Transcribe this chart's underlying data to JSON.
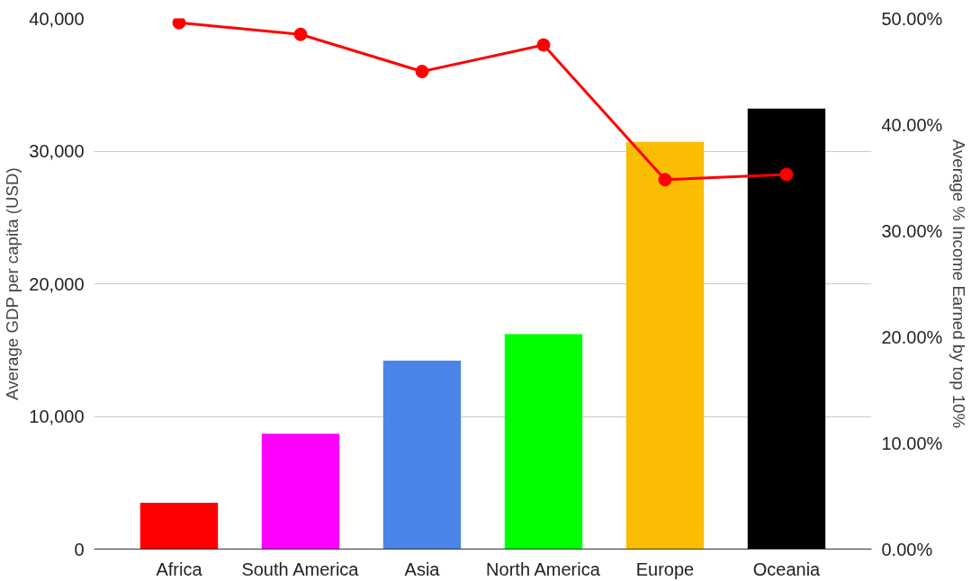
{
  "chart_data": {
    "type": "bar",
    "categories": [
      "Africa",
      "South America",
      "Asia",
      "North America",
      "Europe",
      "Oceania"
    ],
    "ylabel": "Average GDP per capita (USD)",
    "y2label": "Average % Income Earned by top 10%",
    "series": [
      {
        "colors": [
          "#ff0000",
          "#ff00ff",
          "#4a86e8",
          "#00ff00",
          "#fbbc04",
          "#000000"
        ],
        "values": [
          3500,
          8700,
          14200,
          16200,
          30700,
          33200
        ]
      },
      {
        "type": "line",
        "axis": "y2",
        "color": "#ff0000",
        "marker": "circle",
        "values": [
          49.6,
          48.5,
          45.0,
          47.5,
          34.8,
          35.3
        ]
      }
    ],
    "ylim": [
      0,
      40000
    ],
    "yticks": [
      {
        "value": 0,
        "label": "0"
      },
      {
        "value": 10000,
        "label": "10,000"
      },
      {
        "value": 20000,
        "label": "20,000"
      },
      {
        "value": 30000,
        "label": "30,000"
      },
      {
        "value": 40000,
        "label": "40,000"
      }
    ],
    "y2lim": [
      0,
      50
    ],
    "y2ticks": [
      {
        "value": 0,
        "label": "0.00%"
      },
      {
        "value": 10,
        "label": "10.00%"
      },
      {
        "value": 20,
        "label": "20.00%"
      },
      {
        "value": 30,
        "label": "30.00%"
      },
      {
        "value": 40,
        "label": "40.00%"
      },
      {
        "value": 50,
        "label": "50.00%"
      }
    ],
    "grid": "y"
  }
}
